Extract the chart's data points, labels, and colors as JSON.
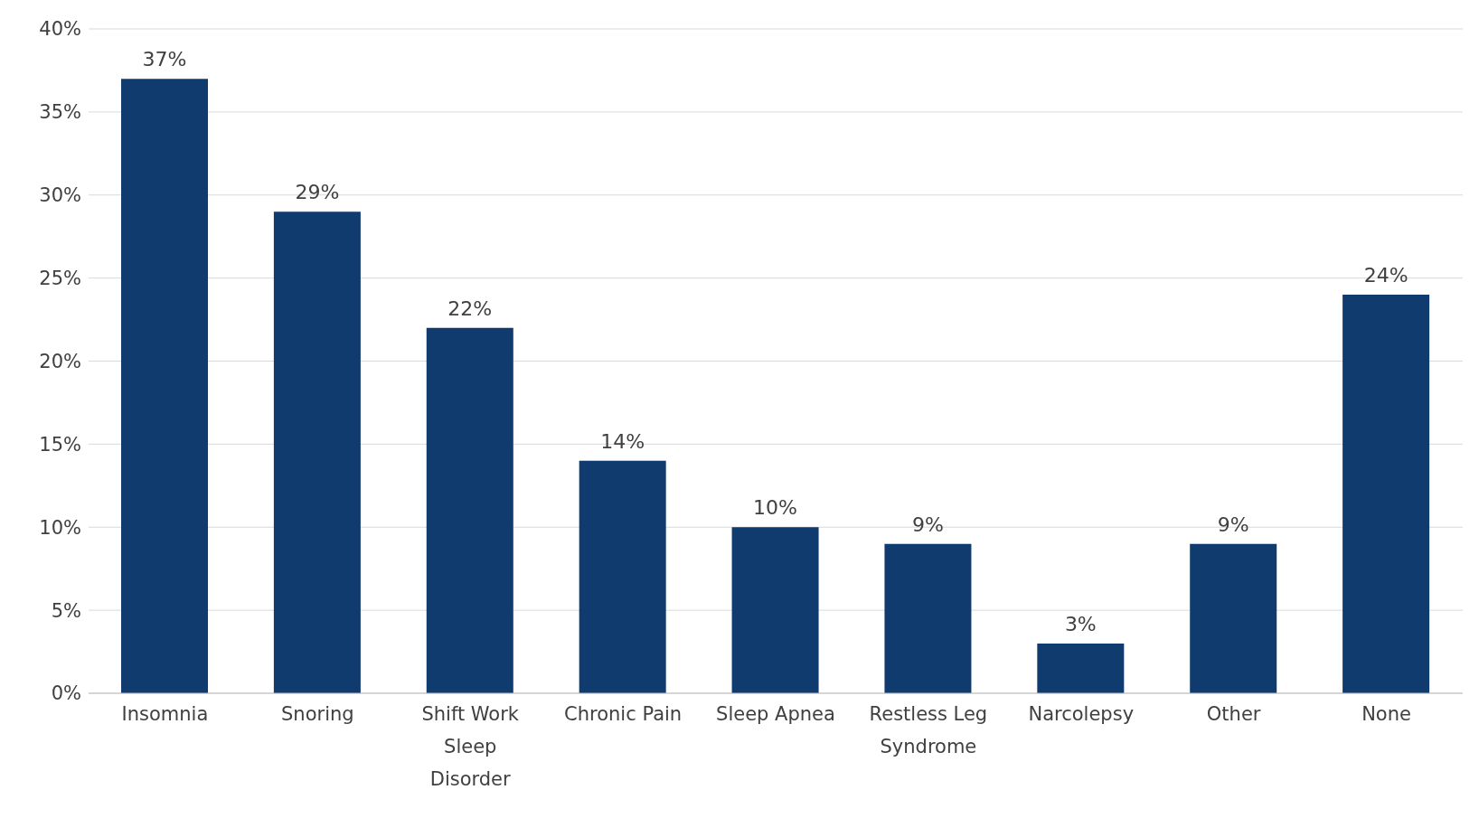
{
  "chart_data": {
    "type": "bar",
    "categories": [
      "Insomnia",
      "Snoring",
      "Shift Work Sleep Disorder",
      "Chronic Pain",
      "Sleep Apnea",
      "Restless Leg Syndrome",
      "Narcolepsy",
      "Other",
      "None"
    ],
    "values": [
      37,
      29,
      22,
      14,
      10,
      9,
      3,
      9,
      24
    ],
    "value_labels": [
      "37%",
      "29%",
      "22%",
      "14%",
      "10%",
      "9%",
      "3%",
      "9%",
      "24%"
    ],
    "color": "#0f3b6e",
    "ylim": [
      0,
      40
    ],
    "yticks": [
      {
        "value": 0,
        "label": "0%"
      },
      {
        "value": 5,
        "label": "5%"
      },
      {
        "value": 10,
        "label": "10%"
      },
      {
        "value": 15,
        "label": "15%"
      },
      {
        "value": 20,
        "label": "20%"
      },
      {
        "value": 25,
        "label": "25%"
      },
      {
        "value": 30,
        "label": "30%"
      },
      {
        "value": 35,
        "label": "35%"
      },
      {
        "value": 40,
        "label": "40%"
      }
    ],
    "grid": "y",
    "legend": false
  }
}
